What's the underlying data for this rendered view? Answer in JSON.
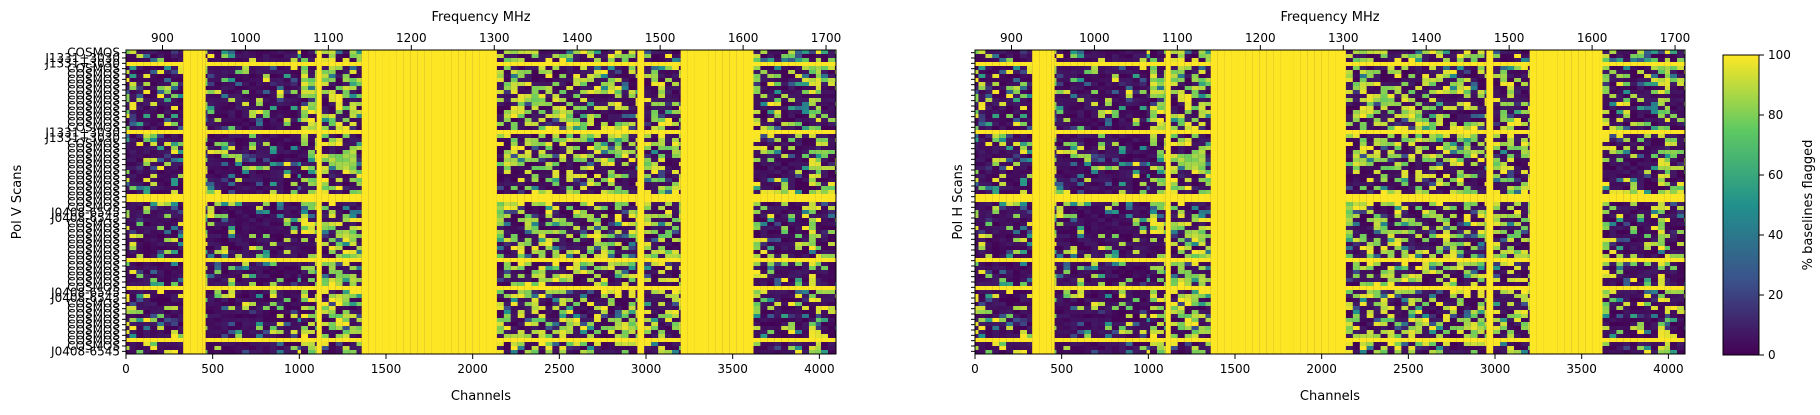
{
  "chart_data": [
    {
      "type": "heatmap",
      "panel": "left",
      "xlabel": "Channels",
      "ylabel": "Pol V  Scans",
      "x2label": "Frequency MHz",
      "xlim": [
        0,
        4096
      ],
      "xticks": [
        0,
        500,
        1000,
        1500,
        2000,
        2500,
        3000,
        3500,
        4000
      ],
      "x2ticks": [
        900,
        1000,
        1100,
        1200,
        1300,
        1400,
        1500,
        1600,
        1700
      ],
      "freq_per_channel": [
        856,
        0.208984375
      ],
      "rows": 76,
      "ytick_labels": [
        "COSMOS",
        "J1331+3030",
        "J1331+3030",
        "COSMOS",
        "COSMOS",
        "COSMOS",
        "COSMOS",
        "COSMOS",
        "COSMOS",
        "COSMOS",
        "COSMOS",
        "COSMOS",
        "COSMOS",
        "COSMOS",
        "COSMOS",
        "J1331+3030",
        "J1331+3030",
        "COSMOS",
        "COSMOS",
        "COSMOS",
        "COSMOS",
        "COSMOS",
        "COSMOS",
        "COSMOS",
        "COSMOS",
        "COSMOS",
        "COSMOS",
        "COSMOS",
        "COSMOS",
        "COSMOS",
        "J0408-6545",
        "J0408-6545",
        "COSMOS",
        "COSMOS",
        "COSMOS",
        "COSMOS",
        "COSMOS",
        "COSMOS",
        "COSMOS",
        "COSMOS",
        "COSMOS",
        "COSMOS",
        "COSMOS",
        "COSMOS",
        "COSMOS",
        "J0408-6545",
        "J0408-6545",
        "COSMOS",
        "COSMOS",
        "COSMOS",
        "COSMOS",
        "COSMOS",
        "COSMOS",
        "COSMOS",
        "COSMOS",
        "COSMOS",
        "J0408-6545"
      ],
      "value_range": [
        0,
        100
      ],
      "fully_flagged_channel_ranges": [
        [
          440,
          460
        ],
        [
          1100,
          1130
        ],
        [
          1360,
          2140
        ],
        [
          2950,
          2990
        ],
        [
          3200,
          3620
        ]
      ]
    },
    {
      "type": "heatmap",
      "panel": "right",
      "xlabel": "Channels",
      "ylabel": "Pol H  Scans",
      "x2label": "Frequency MHz",
      "xlim": [
        0,
        4096
      ],
      "xticks": [
        0,
        500,
        1000,
        1500,
        2000,
        2500,
        3000,
        3500,
        4000
      ],
      "x2ticks": [
        900,
        1000,
        1100,
        1200,
        1300,
        1400,
        1500,
        1600,
        1700
      ],
      "freq_per_channel": [
        856,
        0.208984375
      ],
      "rows": 76,
      "value_range": [
        0,
        100
      ],
      "fully_flagged_channel_ranges": [
        [
          440,
          460
        ],
        [
          1100,
          1130
        ],
        [
          1360,
          2140
        ],
        [
          2950,
          2990
        ],
        [
          3200,
          3620
        ]
      ]
    }
  ],
  "colorbar": {
    "label": "% baselines flagged",
    "ticks": [
      0,
      20,
      40,
      60,
      80,
      100
    ],
    "colormap": [
      "#440154",
      "#3b528b",
      "#21918c",
      "#5ec962",
      "#fde725"
    ]
  }
}
